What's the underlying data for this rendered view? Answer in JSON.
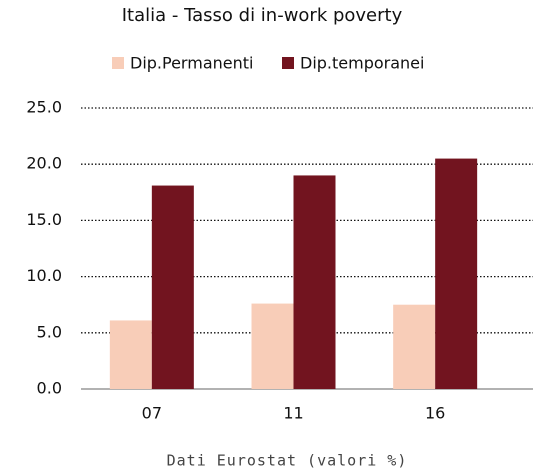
{
  "chart_data": {
    "type": "bar",
    "title": "Italia - Tasso di in-work poverty",
    "categories": [
      "07",
      "11",
      "16"
    ],
    "series": [
      {
        "name": "Dip.Permanenti",
        "color": "#f8cdb8",
        "values": [
          6.1,
          7.6,
          7.5
        ]
      },
      {
        "name": "Dip.temporanei",
        "color": "#72141f",
        "values": [
          18.1,
          19.0,
          20.5
        ]
      }
    ],
    "ylim": [
      0,
      25
    ],
    "yticks": [
      {
        "value": 0,
        "label": "0.0"
      },
      {
        "value": 5,
        "label": "5.0"
      },
      {
        "value": 10,
        "label": "10.0"
      },
      {
        "value": 15,
        "label": "15.0"
      },
      {
        "value": 20,
        "label": "20.0"
      },
      {
        "value": 25,
        "label": "25.0"
      }
    ],
    "grid": true,
    "legend": "top",
    "source": "Dati Eurostat (valori %)"
  }
}
